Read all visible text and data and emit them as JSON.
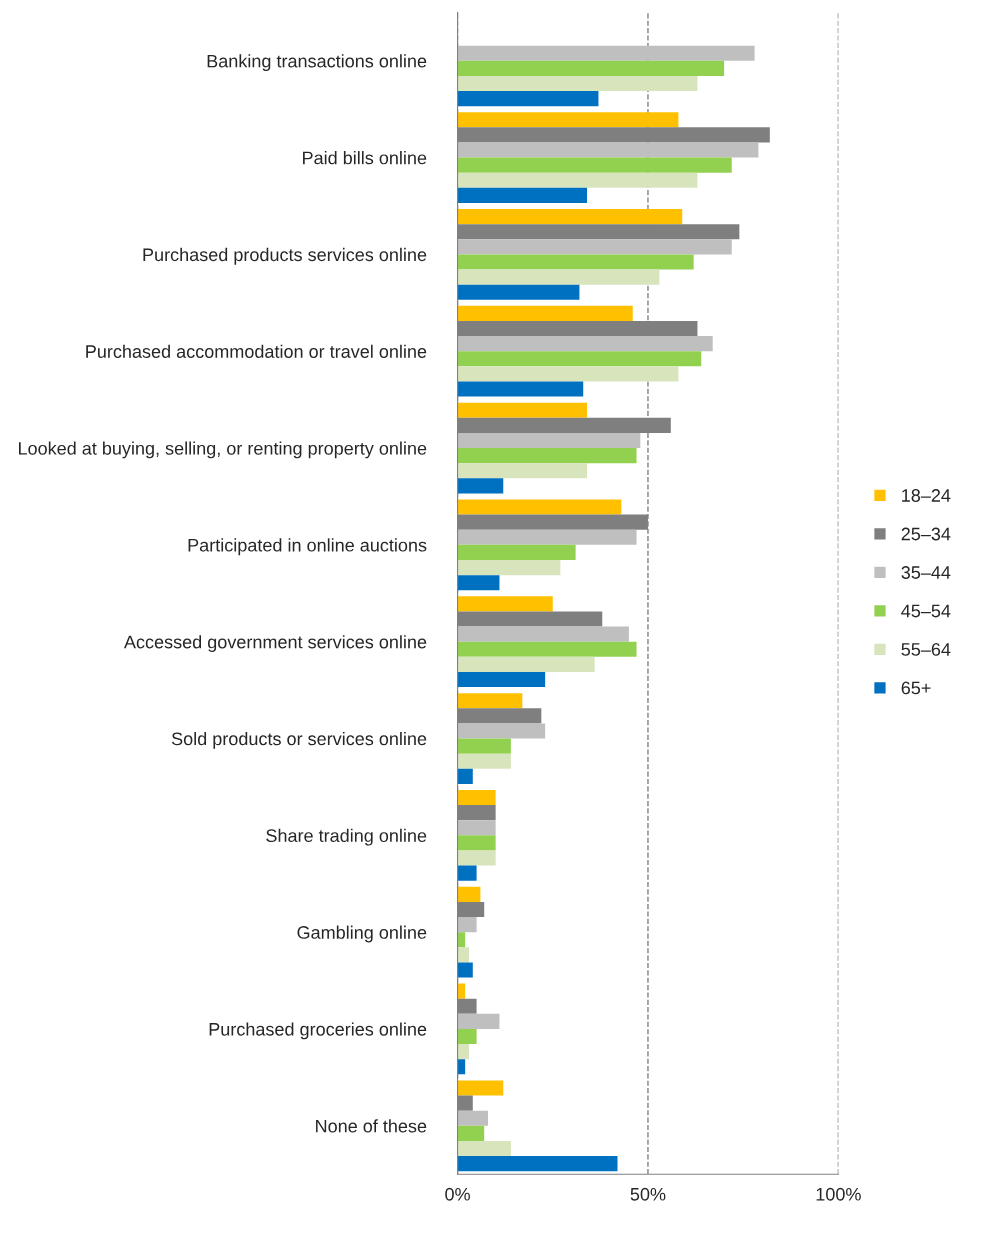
{
  "chart_data": {
    "type": "bar",
    "orientation": "horizontal",
    "categories": [
      "Banking transactions online",
      "Paid bills online",
      "Purchased products services online",
      "Purchased accommodation or travel online",
      "Looked at buying, selling, or renting property online",
      "Participated in online auctions",
      "Accessed government services online",
      "Sold products or services online",
      "Share trading online",
      "Gambling online",
      "Purchased groceries online",
      "None of these"
    ],
    "series": [
      {
        "name": "18–24",
        "color": "#ffc000",
        "values": [
          null,
          58,
          59,
          46,
          34,
          43,
          25,
          17,
          10,
          6,
          2,
          12
        ]
      },
      {
        "name": "25–34",
        "color": "#7f7f7f",
        "values": [
          null,
          82,
          74,
          63,
          56,
          50,
          38,
          22,
          10,
          7,
          5,
          4
        ]
      },
      {
        "name": "35–44",
        "color": "#bfbfbf",
        "values": [
          78,
          79,
          72,
          67,
          48,
          47,
          45,
          23,
          10,
          5,
          11,
          8
        ]
      },
      {
        "name": "45–54",
        "color": "#92d050",
        "values": [
          70,
          72,
          62,
          64,
          47,
          31,
          47,
          14,
          10,
          2,
          5,
          7
        ]
      },
      {
        "name": "55–64",
        "color": "#d7e4bc",
        "values": [
          63,
          63,
          53,
          58,
          34,
          27,
          36,
          14,
          10,
          3,
          3,
          14
        ]
      },
      {
        "name": "65+",
        "color": "#0070c0",
        "values": [
          37,
          34,
          32,
          33,
          12,
          11,
          23,
          4,
          5,
          4,
          2,
          42
        ]
      }
    ],
    "xlim": [
      0,
      100
    ],
    "xticks": [
      {
        "value": 0,
        "label": "0%"
      },
      {
        "value": 50,
        "label": "50%"
      },
      {
        "value": 100,
        "label": "100%"
      }
    ],
    "grid": "x",
    "line_style": "dashed",
    "legend": "right"
  }
}
